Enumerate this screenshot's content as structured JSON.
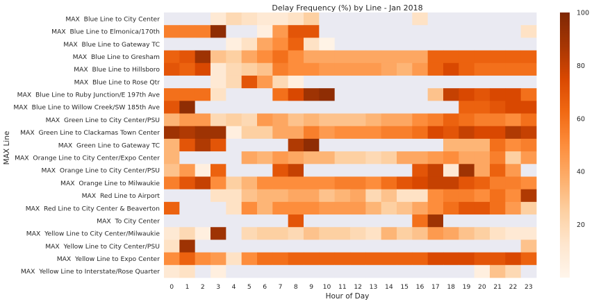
{
  "chart_data": {
    "type": "heatmap",
    "title": "Delay Frequency (%) by Line - Jan 2018",
    "xlabel": "Hour of Day",
    "ylabel": "MAX Line",
    "x": [
      0,
      1,
      2,
      3,
      4,
      5,
      6,
      7,
      8,
      9,
      10,
      11,
      12,
      13,
      14,
      15,
      16,
      17,
      18,
      19,
      20,
      21,
      22,
      23
    ],
    "x_tick_labels": [
      "0",
      "1",
      "2",
      "3",
      "4",
      "5",
      "6",
      "7",
      "8",
      "9",
      "10",
      "11",
      "12",
      "13",
      "14",
      "15",
      "16",
      "17",
      "18",
      "19",
      "20",
      "21",
      "22",
      "23"
    ],
    "rows": [
      "MAX  Blue Line to City Center",
      "MAX  Blue Line to Elmonica/170th",
      "MAX  Blue Line to Gateway TC",
      "MAX  Blue Line to Gresham",
      "MAX  Blue Line to Hillsboro",
      "MAX  Blue Line to Rose Qtr",
      "MAX  Blue Line to Ruby Junction/E 197th Ave",
      "MAX  Blue Line to Willow Creek/SW 185th Ave",
      "MAX  Green Line to City Center/PSU",
      "MAX  Green Line to Clackamas Town Center",
      "MAX  Green Line to Gateway TC",
      "MAX  Orange Line to City Center/Expo Center",
      "MAX  Orange Line to City Center/PSU",
      "MAX  Orange Line to Milwaukie",
      "MAX  Red Line to Airport",
      "MAX  Red Line to City Center & Beaverton",
      "MAX  To City Center",
      "MAX  Yellow Line to City Center/Milwaukie",
      "MAX  Yellow Line to City Center/PSU",
      "MAX  Yellow Line to Expo Center",
      "MAX  Yellow Line to Interstate/Rose Quarter"
    ],
    "colormap": "Oranges",
    "missing_color": "#eaeaf2",
    "vmin": 0,
    "vmax": 100,
    "colorbar_ticks": [
      20,
      40,
      60,
      80,
      100
    ],
    "values": [
      [
        null,
        null,
        null,
        10,
        20,
        15,
        10,
        10,
        15,
        25,
        null,
        null,
        null,
        null,
        null,
        null,
        15,
        null,
        null,
        null,
        null,
        null,
        null,
        null
      ],
      [
        55,
        55,
        55,
        95,
        null,
        null,
        5,
        45,
        70,
        70,
        null,
        null,
        null,
        null,
        null,
        null,
        null,
        null,
        null,
        null,
        null,
        null,
        null,
        15
      ],
      [
        null,
        null,
        null,
        null,
        5,
        15,
        40,
        50,
        65,
        15,
        2,
        null,
        null,
        null,
        null,
        null,
        null,
        null,
        null,
        null,
        null,
        null,
        null,
        null
      ],
      [
        65,
        70,
        90,
        30,
        25,
        40,
        50,
        60,
        50,
        40,
        40,
        40,
        40,
        40,
        40,
        40,
        40,
        65,
        65,
        65,
        65,
        65,
        65,
        65
      ],
      [
        70,
        65,
        75,
        10,
        20,
        25,
        30,
        55,
        50,
        50,
        45,
        45,
        45,
        45,
        40,
        35,
        45,
        65,
        75,
        65,
        60,
        60,
        60,
        60
      ],
      [
        null,
        null,
        null,
        10,
        20,
        70,
        45,
        20,
        5,
        null,
        null,
        null,
        null,
        null,
        null,
        null,
        null,
        null,
        null,
        null,
        null,
        null,
        null,
        null
      ],
      [
        60,
        60,
        60,
        15,
        null,
        null,
        null,
        60,
        75,
        90,
        95,
        null,
        null,
        null,
        null,
        null,
        null,
        30,
        80,
        75,
        70,
        75,
        75,
        60
      ],
      [
        70,
        95,
        null,
        null,
        null,
        null,
        null,
        null,
        null,
        null,
        null,
        null,
        null,
        null,
        null,
        null,
        null,
        null,
        null,
        65,
        65,
        70,
        75,
        75
      ],
      [
        35,
        45,
        45,
        20,
        25,
        20,
        45,
        40,
        30,
        35,
        30,
        30,
        30,
        35,
        40,
        40,
        50,
        55,
        65,
        60,
        55,
        55,
        50,
        60
      ],
      [
        90,
        85,
        90,
        90,
        5,
        25,
        25,
        40,
        40,
        55,
        45,
        50,
        50,
        50,
        55,
        55,
        60,
        75,
        70,
        80,
        75,
        75,
        85,
        80
      ],
      [
        35,
        70,
        85,
        70,
        null,
        null,
        null,
        null,
        85,
        95,
        null,
        null,
        null,
        null,
        null,
        null,
        null,
        null,
        35,
        35,
        35,
        60,
        50,
        55
      ],
      [
        35,
        null,
        null,
        null,
        null,
        40,
        35,
        45,
        40,
        35,
        35,
        25,
        25,
        20,
        25,
        40,
        40,
        45,
        50,
        40,
        40,
        55,
        25,
        45
      ],
      [
        30,
        45,
        5,
        65,
        null,
        null,
        null,
        70,
        80,
        null,
        null,
        null,
        null,
        null,
        null,
        null,
        70,
        80,
        10,
        90,
        40,
        65,
        45,
        null
      ],
      [
        55,
        70,
        80,
        50,
        25,
        35,
        50,
        50,
        50,
        50,
        50,
        55,
        55,
        50,
        60,
        70,
        75,
        80,
        80,
        70,
        65,
        55,
        55,
        50
      ],
      [
        null,
        null,
        null,
        15,
        15,
        30,
        35,
        35,
        40,
        40,
        30,
        35,
        40,
        20,
        30,
        15,
        15,
        50,
        55,
        55,
        50,
        60,
        50,
        85
      ],
      [
        65,
        null,
        null,
        null,
        15,
        50,
        35,
        50,
        50,
        50,
        45,
        45,
        45,
        35,
        25,
        30,
        40,
        50,
        60,
        70,
        70,
        60,
        45,
        25
      ],
      [
        null,
        null,
        null,
        null,
        null,
        null,
        null,
        null,
        70,
        null,
        null,
        null,
        null,
        null,
        null,
        null,
        60,
        90,
        null,
        null,
        null,
        null,
        null,
        null
      ],
      [
        10,
        20,
        5,
        90,
        null,
        20,
        25,
        25,
        20,
        30,
        25,
        25,
        20,
        15,
        35,
        25,
        30,
        45,
        40,
        30,
        25,
        15,
        10,
        10
      ],
      [
        15,
        90,
        null,
        null,
        null,
        null,
        null,
        null,
        null,
        null,
        null,
        null,
        null,
        null,
        null,
        null,
        null,
        null,
        null,
        null,
        null,
        null,
        null,
        30
      ],
      [
        50,
        65,
        50,
        45,
        15,
        50,
        60,
        60,
        65,
        65,
        65,
        65,
        65,
        65,
        65,
        65,
        65,
        75,
        75,
        75,
        70,
        70,
        75,
        65
      ],
      [
        10,
        15,
        null,
        5,
        null,
        null,
        null,
        null,
        null,
        null,
        null,
        null,
        null,
        null,
        null,
        null,
        null,
        null,
        null,
        null,
        5,
        30,
        20,
        null
      ]
    ]
  }
}
